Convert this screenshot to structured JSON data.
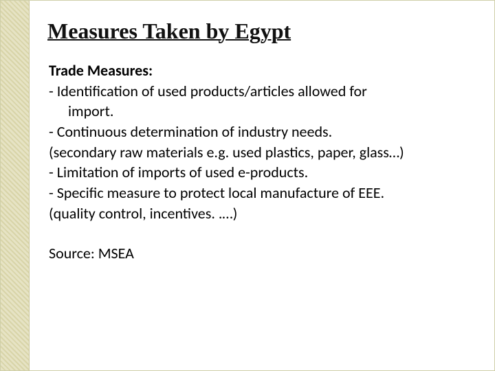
{
  "title": "Measures Taken by Egypt",
  "subhead": "Trade Measures:",
  "lines": {
    "l1a": "- Identification of used products/articles allowed for",
    "l1b": "import.",
    "l2": "- Continuous determination of industry needs.",
    "l3": "(secondary raw materials e.g. used plastics, paper, glass…)",
    "l4": "- Limitation of imports of used e-products.",
    "l5": "- Specific measure to protect local manufacture of EEE.",
    "l6": "(quality control, incentives. .…)"
  },
  "source": "Source:  MSEA",
  "colors": {
    "stripe_light": "#e6e3c4",
    "stripe_dark": "#d8d4a8",
    "text": "#000000",
    "background": "#ffffff"
  },
  "typography": {
    "title_family": "Georgia serif",
    "title_size_pt": 24,
    "title_weight": "bold",
    "body_family": "Calibri sans-serif",
    "body_size_pt": 17
  }
}
